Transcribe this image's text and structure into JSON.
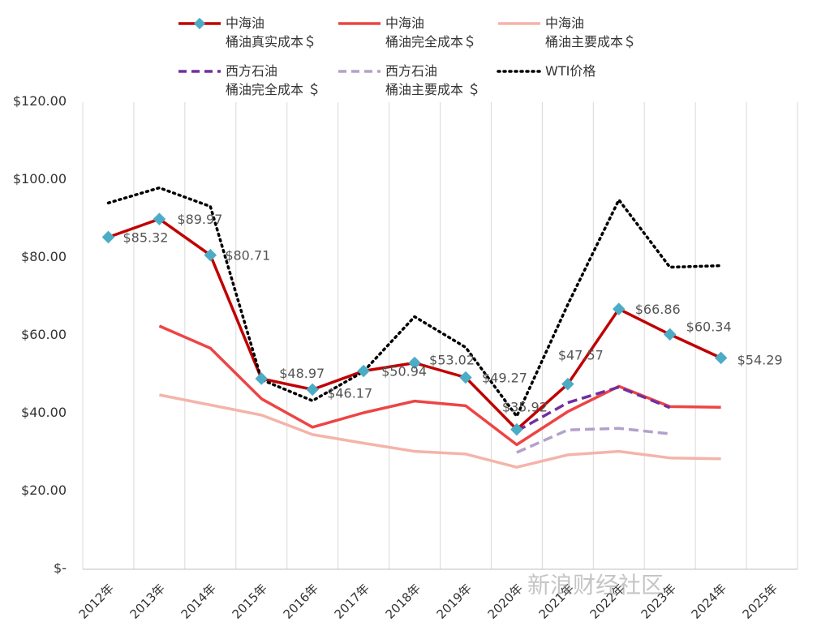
{
  "chart_data": {
    "type": "line",
    "categories": [
      "2012年",
      "2013年",
      "2014年",
      "2015年",
      "2016年",
      "2017年",
      "2018年",
      "2019年",
      "2020年",
      "2021年",
      "2022年",
      "2023年",
      "2024年",
      "2025年"
    ],
    "ylim": [
      0,
      120
    ],
    "yticks": [
      "$-",
      "$20.00",
      "$40.00",
      "$60.00",
      "$80.00",
      "$100.00",
      "$120.00"
    ],
    "ytick_values": [
      0,
      20,
      40,
      60,
      80,
      100,
      120
    ],
    "grid": "vertical",
    "legend_position": "top",
    "series": [
      {
        "name": "中海油\n桶油真实成本＄",
        "color": "#c00000",
        "style": "solid-marker",
        "values": [
          85.32,
          89.97,
          80.71,
          48.97,
          46.17,
          50.94,
          53.02,
          49.27,
          35.92,
          47.57,
          66.86,
          60.34,
          54.29,
          null
        ],
        "labels": [
          "$85.32",
          "$89.97",
          "$80.71",
          "$48.97",
          "$46.17",
          "$50.94",
          "$53.02",
          "$49.27",
          "$35.92",
          "$47.57",
          "$66.86",
          "$60.34",
          "$54.29",
          ""
        ]
      },
      {
        "name": "中海油\n桶油完全成本＄",
        "color": "#ee4444",
        "style": "solid",
        "values": [
          null,
          62.5,
          56.8,
          43.8,
          36.5,
          40.2,
          43.2,
          42.0,
          32.0,
          40.5,
          47.0,
          41.8,
          41.6,
          null
        ]
      },
      {
        "name": "中海油\n桶油主要成本＄",
        "color": "#f4b4aa",
        "style": "solid",
        "values": [
          null,
          44.8,
          42.2,
          39.6,
          34.6,
          32.4,
          30.3,
          29.6,
          26.2,
          29.4,
          30.3,
          28.6,
          28.4,
          null
        ]
      },
      {
        "name": "西方石油\n桶油完全成本 ＄",
        "color": "#7030a0",
        "style": "dashed",
        "values": [
          null,
          null,
          null,
          null,
          null,
          null,
          null,
          null,
          35.5,
          42.8,
          46.8,
          41.5,
          null,
          null
        ]
      },
      {
        "name": "西方石油\n桶油主要成本 ＄",
        "color": "#b4a0cc",
        "style": "dashed",
        "values": [
          null,
          null,
          null,
          null,
          null,
          null,
          null,
          null,
          30.0,
          35.8,
          36.2,
          34.8,
          null,
          null
        ]
      },
      {
        "name": "WTI价格",
        "color": "#000000",
        "style": "dotted",
        "values": [
          94.1,
          98.0,
          93.2,
          48.7,
          43.3,
          50.8,
          64.9,
          57.0,
          39.3,
          68.0,
          94.9,
          77.6,
          78.0,
          null
        ]
      }
    ]
  },
  "watermark": "新浪财经社区"
}
